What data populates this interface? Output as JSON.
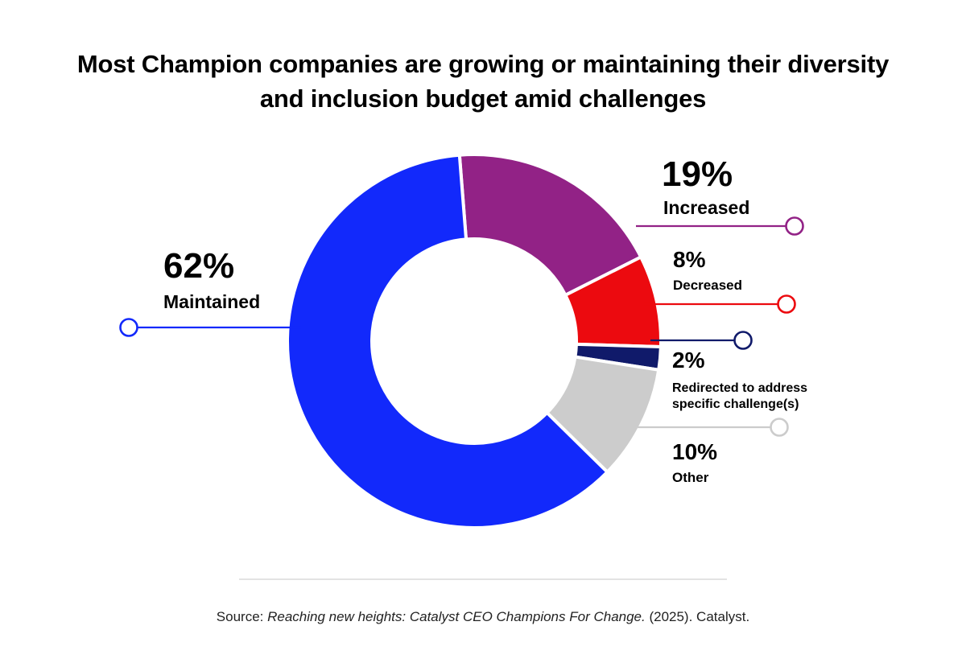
{
  "title_line1": "Most Champion companies are growing or maintaining their diversity",
  "title_line2": "and inclusion budget amid challenges",
  "source": {
    "prefix": "Source: ",
    "italic": "Reaching new heights: Catalyst CEO Champions For Change.",
    "suffix": " (2025). Catalyst."
  },
  "chart_data": {
    "type": "pie",
    "title": "Most Champion companies are growing or maintaining their diversity and inclusion budget amid challenges",
    "variant": "donut",
    "slices": [
      {
        "label": "Increased",
        "value": 19,
        "display": "19%",
        "color": "#922286"
      },
      {
        "label": "Decreased",
        "value": 8,
        "display": "8%",
        "color": "#ec0a0f"
      },
      {
        "label": "Redirected to address specific challenge(s)",
        "value": 2,
        "display": "2%",
        "color": "#101a6a"
      },
      {
        "label": "Other",
        "value": 10,
        "display": "10%",
        "color": "#cccccc"
      },
      {
        "label": "Maintained",
        "value": 62,
        "display": "62%",
        "color": "#1229fb"
      }
    ],
    "legend": "callouts"
  }
}
